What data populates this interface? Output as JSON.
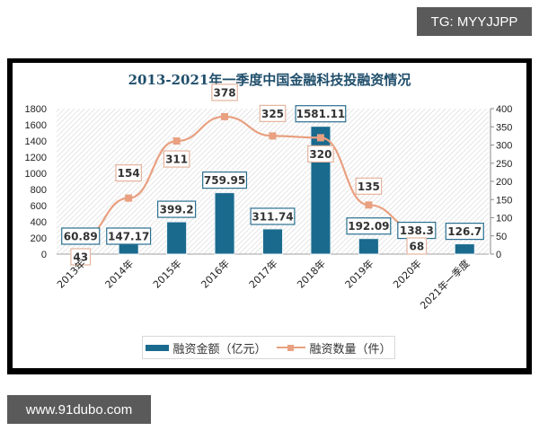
{
  "watermarks": {
    "top": "TG: MYYJJPP",
    "bottom": "www.91dubo.com"
  },
  "chart_data": {
    "type": "bar+line",
    "title": "2013-2021年一季度中国金融科技投融资情况",
    "categories": [
      "2013年",
      "2014年",
      "2015年",
      "2016年",
      "2017年",
      "2018年",
      "2019年",
      "2020年",
      "2021年一季度"
    ],
    "series": [
      {
        "name": "融资金额（亿元）",
        "type": "bar",
        "axis": "left",
        "color": "#1a6a8e",
        "values": [
          60.89,
          147.17,
          399.2,
          759.95,
          311.74,
          1581.11,
          192.09,
          138.3,
          126.7
        ]
      },
      {
        "name": "融资数量（件）",
        "type": "line",
        "axis": "right",
        "color": "#e9a080",
        "values": [
          43,
          154,
          311,
          378,
          325,
          320,
          135,
          68,
          null
        ]
      }
    ],
    "left_axis": {
      "ticks": [
        "0",
        "200",
        "400",
        "600",
        "800",
        "1000",
        "1200",
        "1400",
        "1600",
        "1800"
      ],
      "ylim": [
        0,
        1800
      ]
    },
    "right_axis": {
      "ticks": [
        "0",
        "50",
        "100",
        "150",
        "200",
        "250",
        "300",
        "350",
        "400"
      ],
      "ylim": [
        0,
        400
      ]
    },
    "legend_position": "bottom",
    "grid": false
  },
  "legend": {
    "bar_label": "融资金额（亿元）",
    "line_label": "融资数量（件）"
  }
}
